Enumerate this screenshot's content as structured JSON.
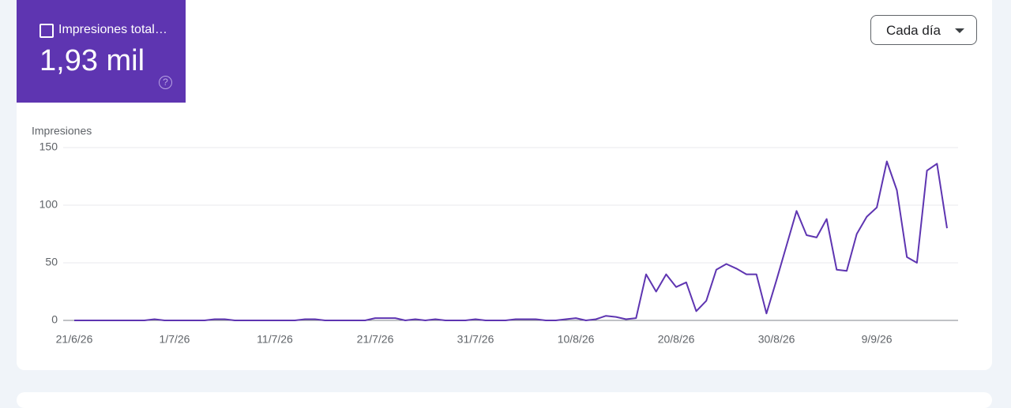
{
  "card": {
    "label": "Impresiones total…",
    "value": "1,93 mil"
  },
  "control": {
    "period": "Cada día"
  },
  "chart_data": {
    "type": "line",
    "y_label": "Impresiones",
    "color": "#5e35b1",
    "categories": [
      "21/6/26",
      null,
      null,
      null,
      null,
      null,
      null,
      null,
      null,
      null,
      "1/7/26",
      null,
      null,
      null,
      null,
      null,
      null,
      null,
      null,
      null,
      "11/7/26",
      null,
      null,
      null,
      null,
      null,
      null,
      null,
      null,
      null,
      "21/7/26",
      null,
      null,
      null,
      null,
      null,
      null,
      null,
      null,
      null,
      "31/7/26",
      null,
      null,
      null,
      null,
      null,
      null,
      null,
      null,
      null,
      "10/8/26",
      null,
      null,
      null,
      null,
      null,
      null,
      null,
      null,
      null,
      "20/8/26",
      null,
      null,
      null,
      null,
      null,
      null,
      null,
      null,
      null,
      "30/8/26",
      null,
      null,
      null,
      null,
      null,
      null,
      null,
      null,
      null,
      "9/9/26",
      null,
      null,
      null,
      null,
      null,
      null,
      null
    ],
    "values": [
      0,
      0,
      0,
      0,
      0,
      0,
      0,
      0,
      1,
      0,
      0,
      0,
      0,
      0,
      1,
      1,
      0,
      0,
      0,
      0,
      0,
      0,
      0,
      1,
      1,
      0,
      0,
      0,
      0,
      0,
      2,
      2,
      2,
      0,
      1,
      0,
      1,
      0,
      0,
      0,
      1,
      0,
      0,
      0,
      1,
      1,
      1,
      0,
      0,
      1,
      2,
      0,
      1,
      4,
      3,
      1,
      2,
      40,
      25,
      40,
      29,
      33,
      8,
      17,
      44,
      49,
      45,
      40,
      40,
      6,
      35,
      65,
      95,
      74,
      72,
      88,
      44,
      43,
      75,
      90,
      98,
      138,
      113,
      55,
      50,
      130,
      136,
      80
    ],
    "ylim": [
      0,
      150
    ],
    "yticks": [
      0,
      50,
      100,
      150
    ],
    "grid": true
  }
}
